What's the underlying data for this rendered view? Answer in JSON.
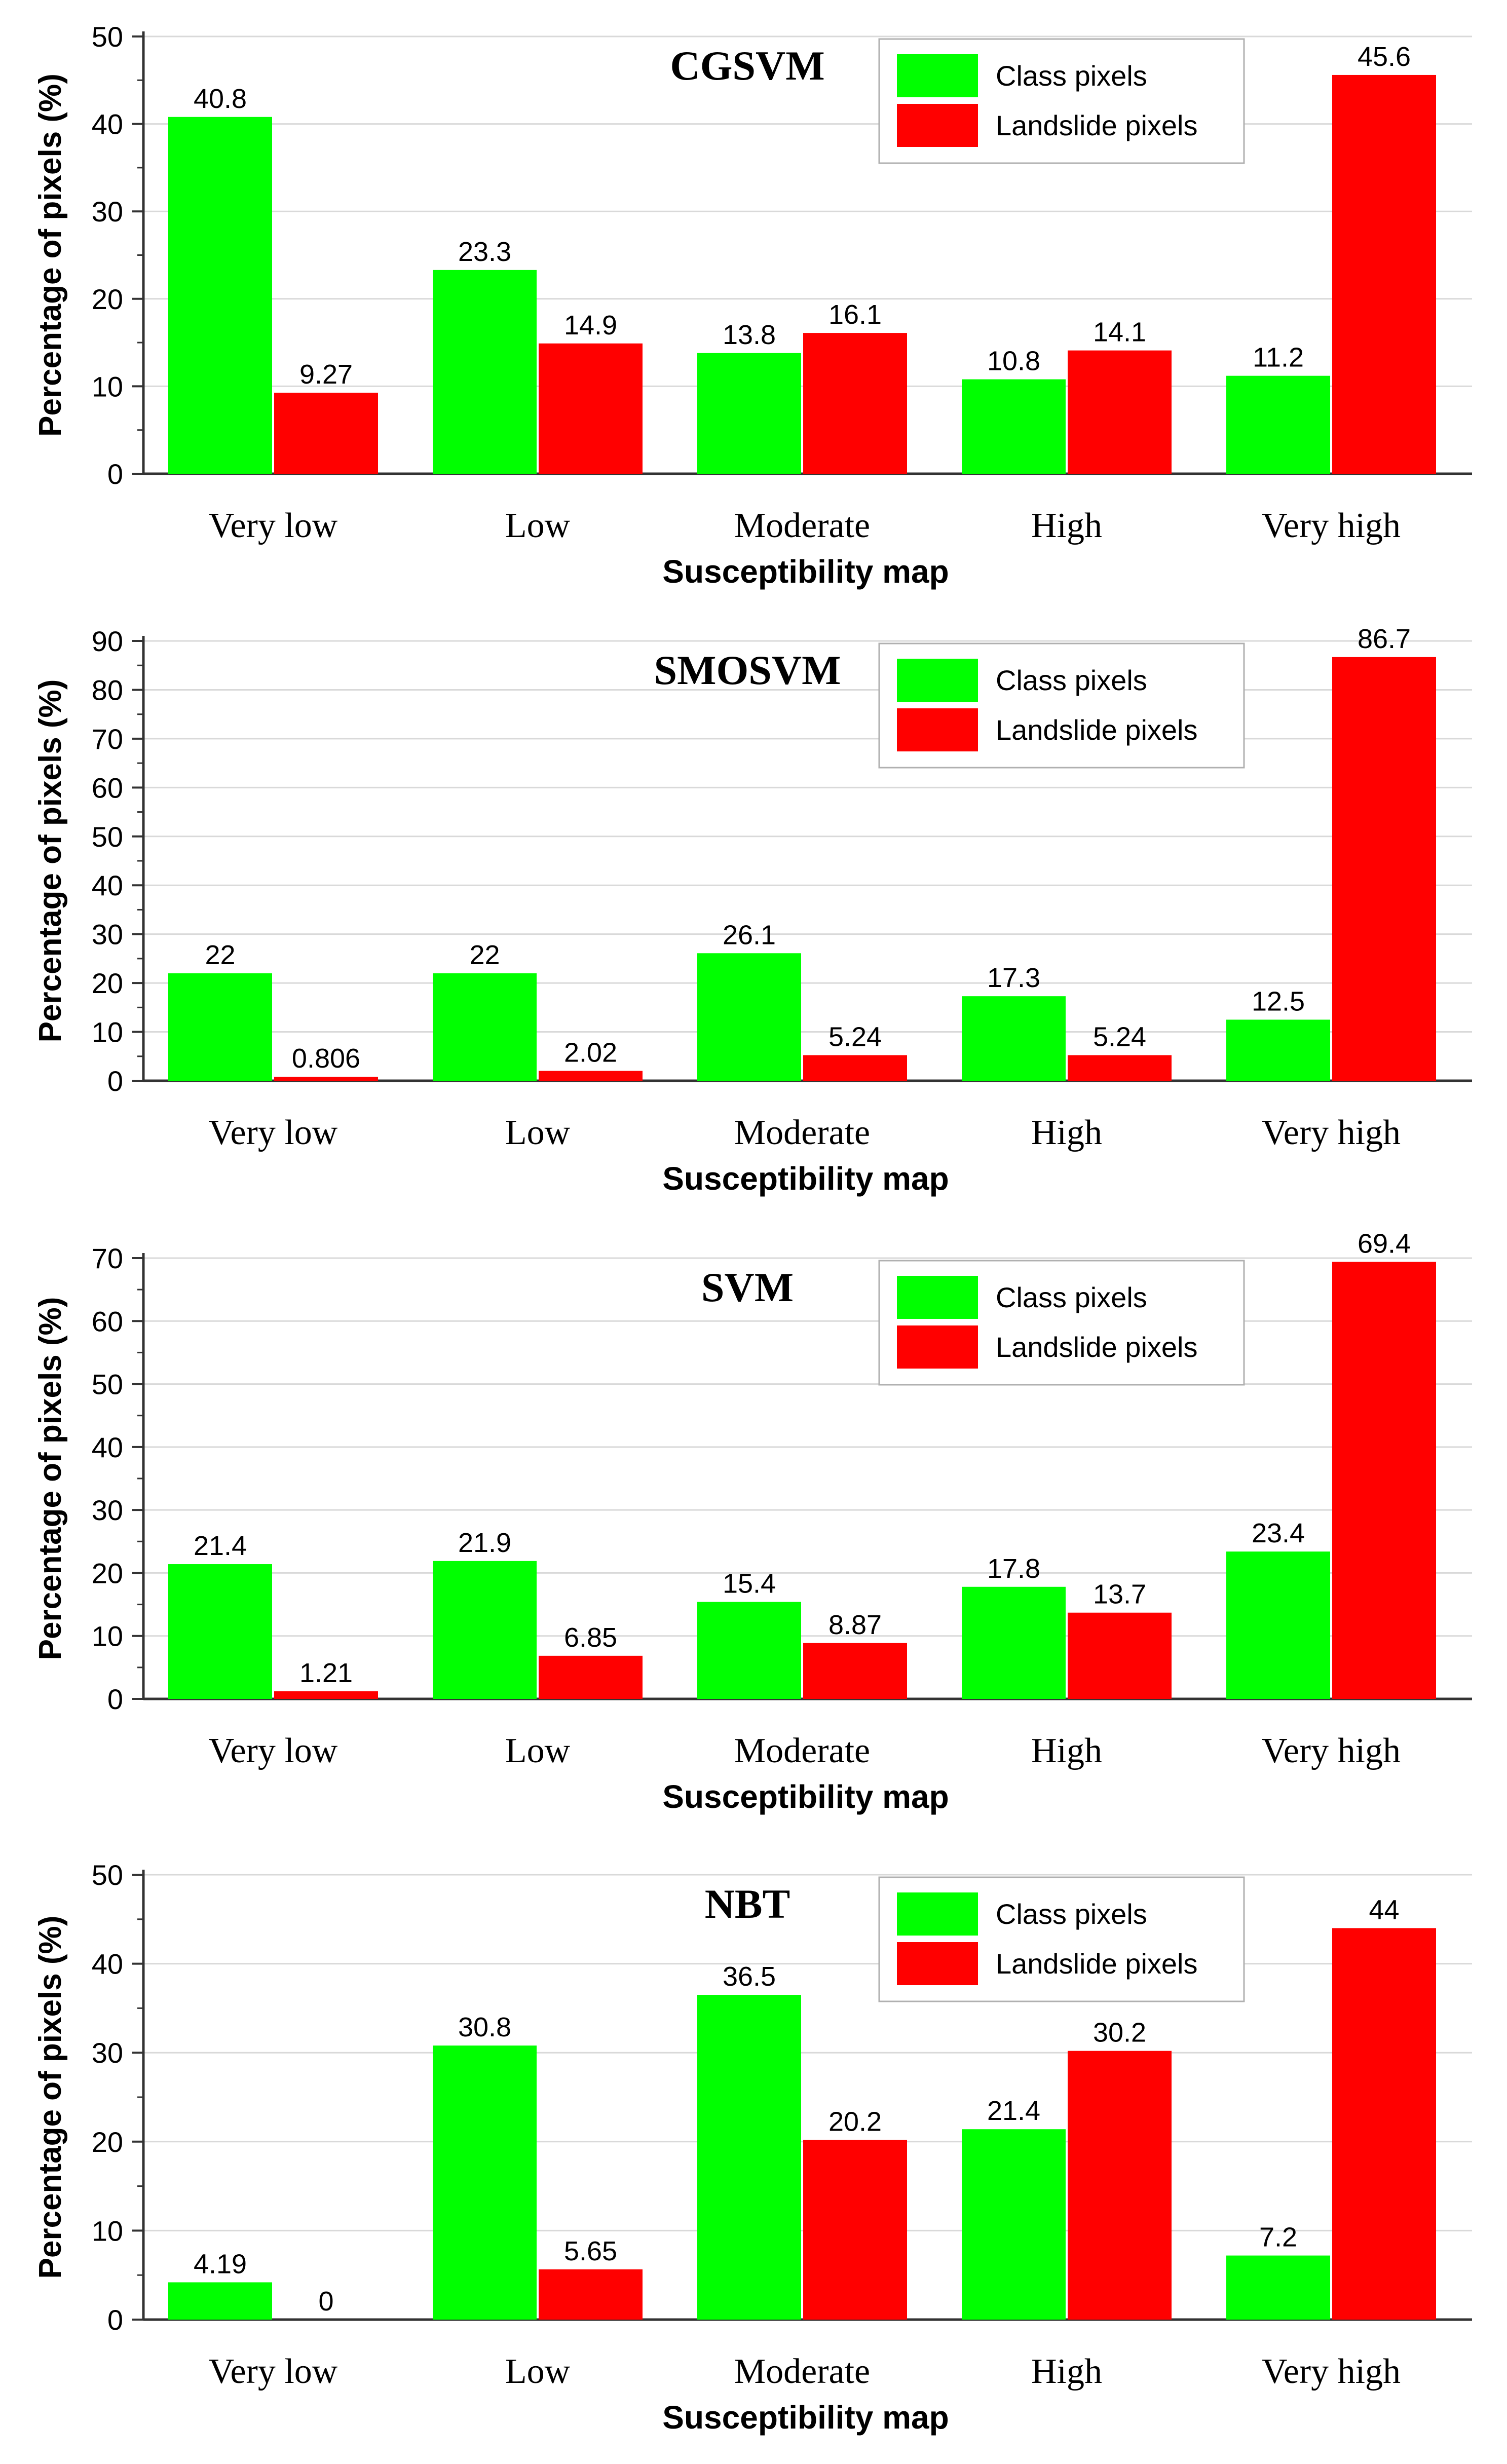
{
  "shared": {
    "xlabel": "Susceptibility map",
    "ylabel": "Percentage of pixels (%)",
    "legend_labels": [
      "Class pixels",
      "Landslide pixels"
    ],
    "colors": {
      "class": "#00ff00",
      "landslide": "#ff0000",
      "axis": "#333333",
      "grid": "#d9d9d9"
    }
  },
  "chart_data": [
    {
      "type": "bar",
      "title": "CGSVM",
      "categories": [
        "Very low",
        "Low",
        "Moderate",
        "High",
        "Very high"
      ],
      "ylim": [
        0,
        50
      ],
      "yticks": [
        0,
        10,
        20,
        30,
        40,
        50
      ],
      "grid": true,
      "legend": "top-right",
      "series": [
        {
          "name": "Class pixels",
          "values": [
            40.8,
            23.3,
            13.8,
            10.8,
            11.2
          ],
          "labels": [
            "40.8",
            "23.3",
            "13.8",
            "10.8",
            "11.2"
          ]
        },
        {
          "name": "Landslide pixels",
          "values": [
            9.27,
            14.9,
            16.1,
            14.1,
            45.6
          ],
          "labels": [
            "9.27",
            "14.9",
            "16.1",
            "14.1",
            "45.6"
          ]
        }
      ]
    },
    {
      "type": "bar",
      "title": "SMOSVM",
      "categories": [
        "Very low",
        "Low",
        "Moderate",
        "High",
        "Very high"
      ],
      "ylim": [
        0,
        90
      ],
      "yticks": [
        0,
        10,
        20,
        30,
        40,
        50,
        60,
        70,
        80,
        90
      ],
      "grid": true,
      "legend": "top-right",
      "series": [
        {
          "name": "Class pixels",
          "values": [
            22,
            22,
            26.1,
            17.3,
            12.5
          ],
          "labels": [
            "22",
            "22",
            "26.1",
            "17.3",
            "12.5"
          ]
        },
        {
          "name": "Landslide pixels",
          "values": [
            0.806,
            2.02,
            5.24,
            5.24,
            86.7
          ],
          "labels": [
            "0.806",
            "2.02",
            "5.24",
            "5.24",
            "86.7"
          ]
        }
      ]
    },
    {
      "type": "bar",
      "title": "SVM",
      "categories": [
        "Very low",
        "Low",
        "Moderate",
        "High",
        "Very high"
      ],
      "ylim": [
        0,
        70
      ],
      "yticks": [
        0,
        10,
        20,
        30,
        40,
        50,
        60,
        70
      ],
      "grid": true,
      "legend": "top-right",
      "series": [
        {
          "name": "Class pixels",
          "values": [
            21.4,
            21.9,
            15.4,
            17.8,
            23.4
          ],
          "labels": [
            "21.4",
            "21.9",
            "15.4",
            "17.8",
            "23.4"
          ]
        },
        {
          "name": "Landslide pixels",
          "values": [
            1.21,
            6.85,
            8.87,
            13.7,
            69.4
          ],
          "labels": [
            "1.21",
            "6.85",
            "8.87",
            "13.7",
            "69.4"
          ]
        }
      ]
    },
    {
      "type": "bar",
      "title": "NBT",
      "categories": [
        "Very low",
        "Low",
        "Moderate",
        "High",
        "Very high"
      ],
      "ylim": [
        0,
        50
      ],
      "yticks": [
        0,
        10,
        20,
        30,
        40,
        50
      ],
      "grid": true,
      "legend": "top-right",
      "series": [
        {
          "name": "Class pixels",
          "values": [
            4.19,
            30.8,
            36.5,
            21.4,
            7.2
          ],
          "labels": [
            "4.19",
            "30.8",
            "36.5",
            "21.4",
            "7.2"
          ]
        },
        {
          "name": "Landslide pixels",
          "values": [
            0,
            5.65,
            20.2,
            30.2,
            44
          ],
          "labels": [
            "0",
            "5.65",
            "20.2",
            "30.2",
            "44"
          ]
        }
      ]
    }
  ]
}
